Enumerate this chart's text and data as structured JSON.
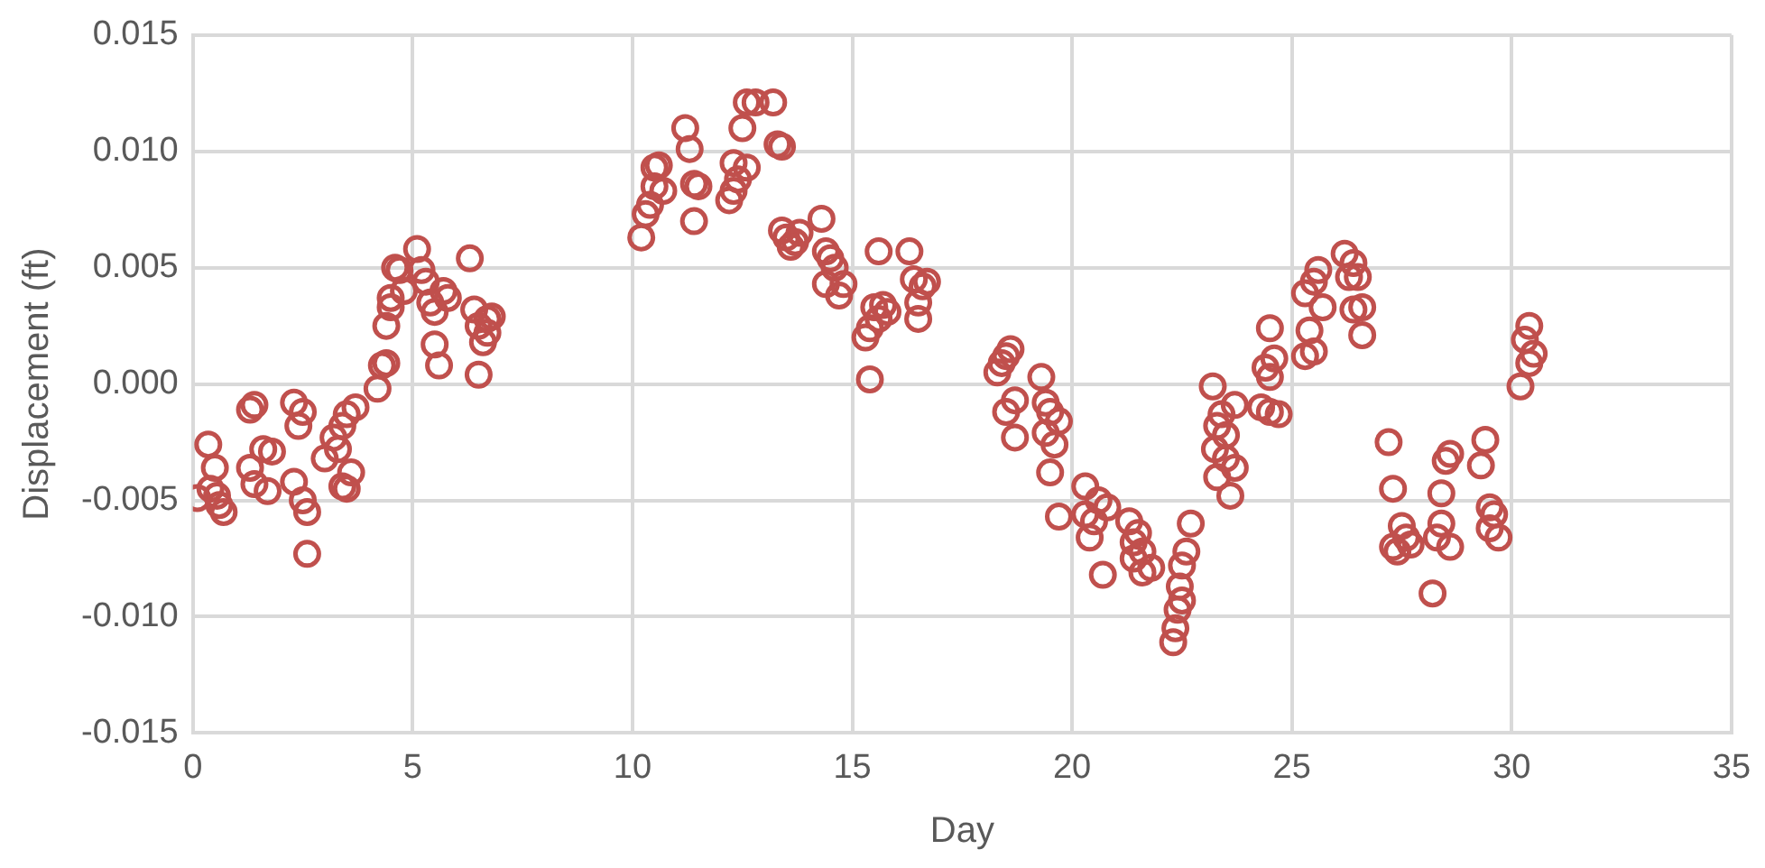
{
  "chart_data": {
    "type": "scatter",
    "xlabel": "Day",
    "ylabel": "Displacement (ft)",
    "xlim": [
      0,
      35
    ],
    "xticks": [
      0,
      5,
      10,
      15,
      20,
      25,
      30,
      35
    ],
    "ylim": [
      -0.015,
      0.015
    ],
    "yticks": [
      {
        "value": -0.015,
        "label": "-0.015"
      },
      {
        "value": -0.01,
        "label": "-0.010"
      },
      {
        "value": -0.005,
        "label": "-0.005"
      },
      {
        "value": 0,
        "label": "0.000"
      },
      {
        "value": 0.005,
        "label": "0.005"
      },
      {
        "value": 0.01,
        "label": "0.010"
      },
      {
        "value": 0.015,
        "label": "0.015"
      }
    ],
    "grid": true,
    "legend": false,
    "marker": "circle",
    "series": [
      {
        "color": "#c0504d",
        "x": [
          0.1,
          0.35,
          0.4,
          0.5,
          0.55,
          0.6,
          0.7,
          1.3,
          1.4,
          1.3,
          1.4,
          1.6,
          1.7,
          1.8,
          2.3,
          2.4,
          2.5,
          2.3,
          2.5,
          2.6,
          2.6,
          3.0,
          3.2,
          3.3,
          3.4,
          3.4,
          3.5,
          3.6,
          3.7,
          3.5,
          4.2,
          4.3,
          4.4,
          4.4,
          4.5,
          4.5,
          4.6,
          4.7,
          4.8,
          5.1,
          5.2,
          5.3,
          5.4,
          5.5,
          5.5,
          5.6,
          5.7,
          5.8,
          6.3,
          6.4,
          6.5,
          6.5,
          6.6,
          6.7,
          6.7,
          6.8,
          10.2,
          10.3,
          10.4,
          10.5,
          10.5,
          10.6,
          10.7,
          11.2,
          11.3,
          11.4,
          11.4,
          11.5,
          12.2,
          12.3,
          12.3,
          12.4,
          12.5,
          12.6,
          12.6,
          12.8,
          13.2,
          13.3,
          13.4,
          13.4,
          13.5,
          13.6,
          13.7,
          13.8,
          14.3,
          14.4,
          14.4,
          14.5,
          14.6,
          14.7,
          14.8,
          15.3,
          15.4,
          15.4,
          15.5,
          15.6,
          15.6,
          15.7,
          15.8,
          16.3,
          16.4,
          16.5,
          16.5,
          16.6,
          16.7,
          18.3,
          18.4,
          18.5,
          18.5,
          18.6,
          18.7,
          18.7,
          19.3,
          19.4,
          19.4,
          19.5,
          19.5,
          19.6,
          19.7,
          19.7,
          20.3,
          20.3,
          20.4,
          20.5,
          20.6,
          20.7,
          20.8,
          21.3,
          21.4,
          21.4,
          21.5,
          21.6,
          21.6,
          21.8,
          22.3,
          22.35,
          22.4,
          22.45,
          22.5,
          22.5,
          22.6,
          22.7,
          23.2,
          23.25,
          23.3,
          23.3,
          23.4,
          23.5,
          23.5,
          23.6,
          23.7,
          23.7,
          24.3,
          24.4,
          24.5,
          24.5,
          24.5,
          24.6,
          24.7,
          25.3,
          25.3,
          25.4,
          25.5,
          25.5,
          25.6,
          25.7,
          26.2,
          26.3,
          26.4,
          26.4,
          26.5,
          26.6,
          26.6,
          27.2,
          27.3,
          27.3,
          27.4,
          27.5,
          27.6,
          27.7,
          28.2,
          28.3,
          28.4,
          28.4,
          28.5,
          28.6,
          28.6,
          29.3,
          29.4,
          29.5,
          29.5,
          29.6,
          29.7,
          30.2,
          30.3,
          30.4,
          30.4,
          30.5
        ],
        "values": [
          -0.0049,
          -0.0026,
          -0.0045,
          -0.0036,
          -0.0048,
          -0.0052,
          -0.0055,
          -0.0011,
          -0.0009,
          -0.0036,
          -0.0043,
          -0.0028,
          -0.0046,
          -0.0029,
          -0.0008,
          -0.0018,
          -0.0012,
          -0.0042,
          -0.005,
          -0.0055,
          -0.0073,
          -0.0032,
          -0.0023,
          -0.0028,
          -0.0018,
          -0.0044,
          -0.0045,
          -0.0038,
          -0.001,
          -0.0013,
          -0.0002,
          0.0008,
          0.0009,
          0.0025,
          0.0037,
          0.0033,
          0.005,
          0.0049,
          0.004,
          0.0058,
          0.0049,
          0.0044,
          0.0035,
          0.0031,
          0.0017,
          0.0008,
          0.004,
          0.0037,
          0.0054,
          0.0032,
          0.0025,
          0.0004,
          0.0018,
          0.0028,
          0.0022,
          0.0029,
          0.0063,
          0.0073,
          0.0077,
          0.0085,
          0.0093,
          0.0094,
          0.0083,
          0.011,
          0.0101,
          0.007,
          0.0086,
          0.0085,
          0.0079,
          0.0083,
          0.0095,
          0.0088,
          0.011,
          0.0121,
          0.0093,
          0.0121,
          0.0121,
          0.0103,
          0.0102,
          0.0066,
          0.0063,
          0.0059,
          0.0061,
          0.0065,
          0.0071,
          0.0057,
          0.0043,
          0.0054,
          0.005,
          0.0038,
          0.0043,
          0.002,
          0.0002,
          0.0024,
          0.0033,
          0.0028,
          0.0057,
          0.0034,
          0.0031,
          0.0057,
          0.0045,
          0.0028,
          0.0035,
          0.0042,
          0.0044,
          0.0005,
          0.0009,
          0.0012,
          -0.0012,
          0.0015,
          -0.0023,
          -0.0007,
          0.0003,
          -0.0008,
          -0.0021,
          -0.0012,
          -0.0038,
          -0.0026,
          -0.0016,
          -0.0057,
          -0.0044,
          -0.0056,
          -0.0066,
          -0.0059,
          -0.005,
          -0.0082,
          -0.0053,
          -0.0059,
          -0.0068,
          -0.0075,
          -0.0064,
          -0.0072,
          -0.0081,
          -0.0079,
          -0.0111,
          -0.0105,
          -0.0097,
          -0.0087,
          -0.0093,
          -0.0078,
          -0.0072,
          -0.006,
          -0.0001,
          -0.0028,
          -0.0018,
          -0.004,
          -0.0013,
          -0.0022,
          -0.0032,
          -0.0048,
          -0.0009,
          -0.0036,
          -0.001,
          0.0007,
          0.0003,
          -0.0012,
          0.0024,
          0.0011,
          -0.0013,
          0.0012,
          0.0039,
          0.0023,
          0.0014,
          0.0044,
          0.0049,
          0.0033,
          0.0056,
          0.0046,
          0.0052,
          0.0032,
          0.0046,
          0.0033,
          0.0021,
          -0.0025,
          -0.0045,
          -0.007,
          -0.0072,
          -0.0061,
          -0.0066,
          -0.0069,
          -0.009,
          -0.0066,
          -0.006,
          -0.0047,
          -0.0033,
          -0.003,
          -0.007,
          -0.0035,
          -0.0024,
          -0.0053,
          -0.0062,
          -0.0056,
          -0.0066,
          -0.0001,
          0.0019,
          0.0025,
          0.0009,
          0.0013
        ]
      }
    ]
  }
}
